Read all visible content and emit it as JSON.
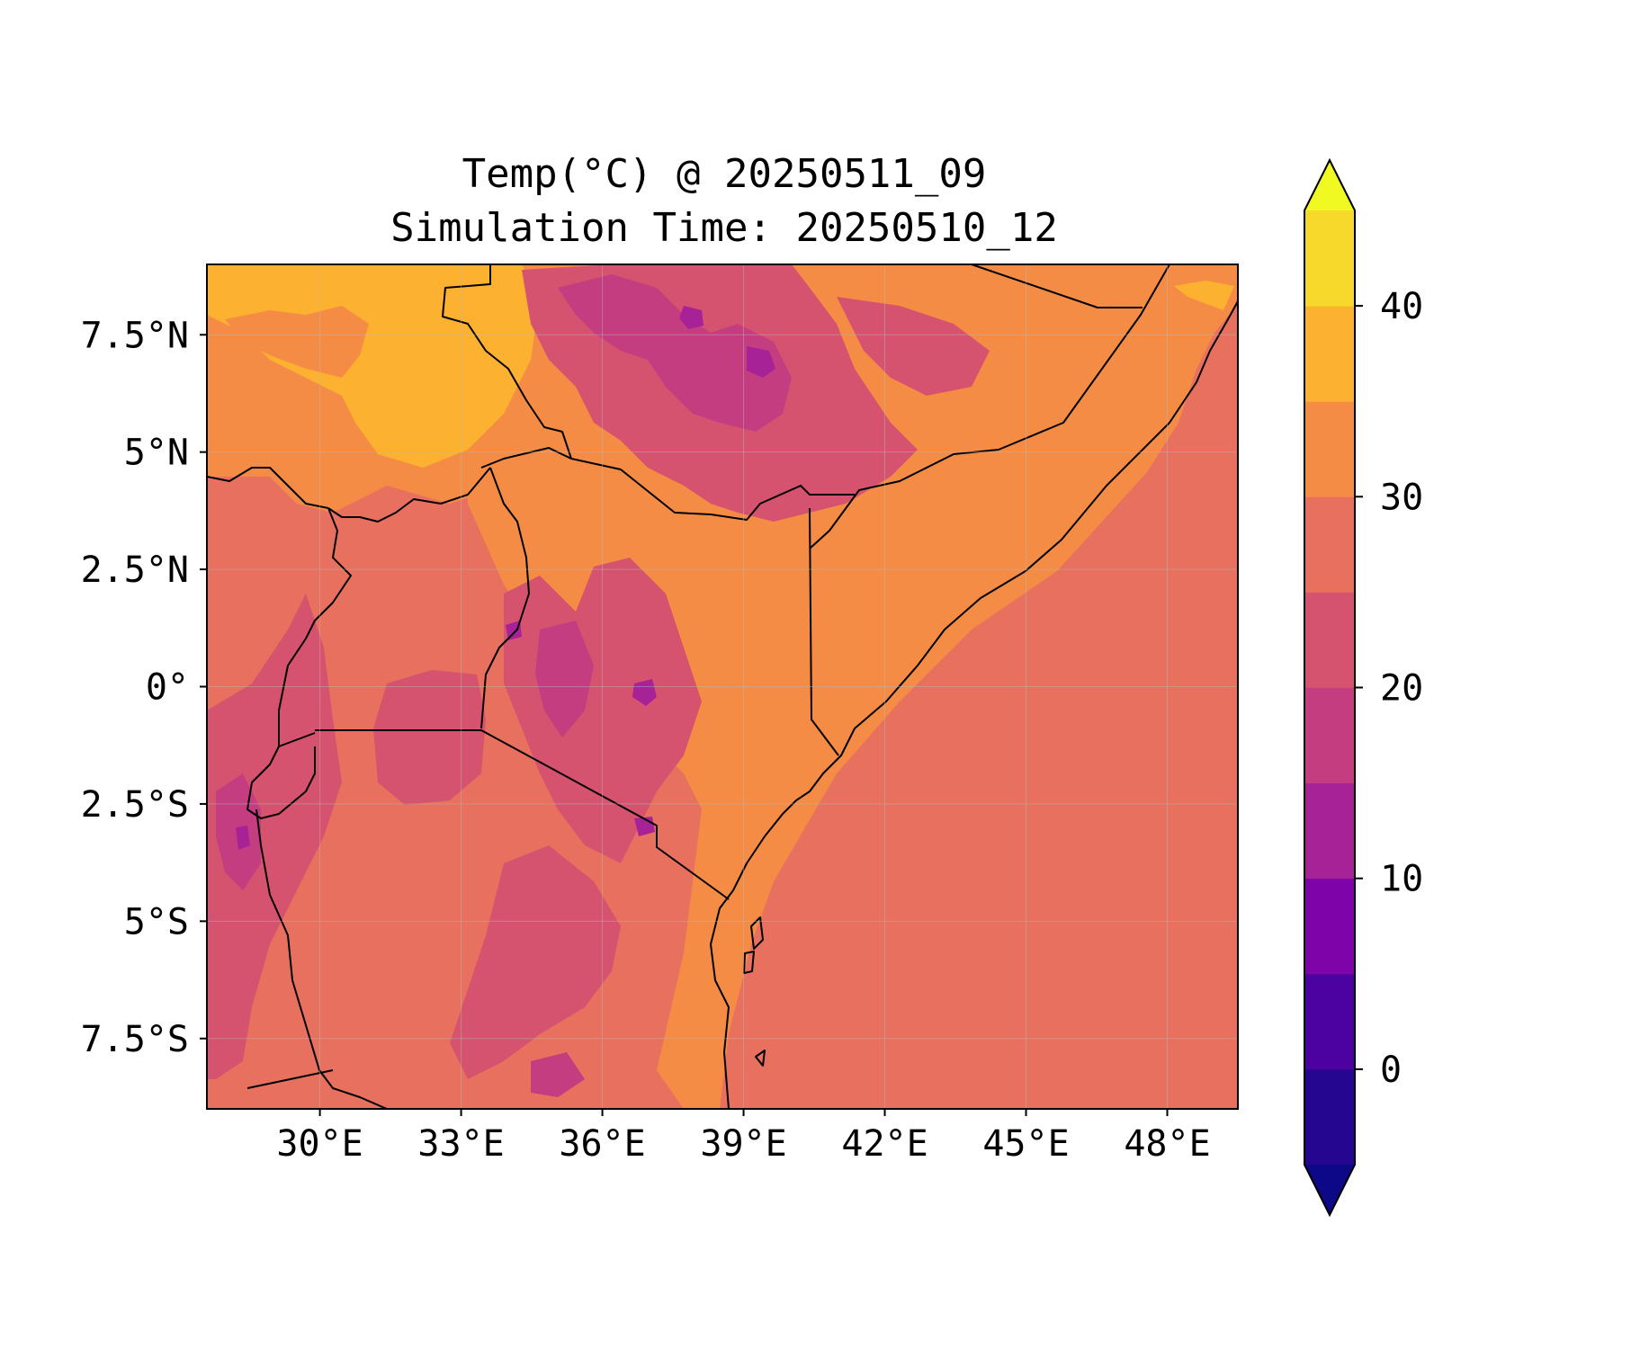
{
  "title": {
    "line1": "Temp(°C) @ 20250511_09",
    "line2": "Simulation Time: 20250510_12"
  },
  "map": {
    "lon_range": [
      27.6,
      49.5
    ],
    "lat_range": [
      -9.0,
      9.0
    ],
    "lon_ticks": [
      {
        "value": 30,
        "label": "30°E"
      },
      {
        "value": 33,
        "label": "33°E"
      },
      {
        "value": 36,
        "label": "36°E"
      },
      {
        "value": 39,
        "label": "39°E"
      },
      {
        "value": 42,
        "label": "42°E"
      },
      {
        "value": 45,
        "label": "45°E"
      },
      {
        "value": 48,
        "label": "48°E"
      }
    ],
    "lat_ticks": [
      {
        "value": 7.5,
        "label": "7.5°N"
      },
      {
        "value": 5,
        "label": "5°N"
      },
      {
        "value": 2.5,
        "label": "2.5°N"
      },
      {
        "value": 0,
        "label": "0°"
      },
      {
        "value": -2.5,
        "label": "2.5°S"
      },
      {
        "value": -5,
        "label": "5°S"
      },
      {
        "value": -7.5,
        "label": "7.5°S"
      }
    ],
    "gridlines": true,
    "features": [
      "coastline",
      "country-borders"
    ]
  },
  "colorbar": {
    "cmap": "plasma",
    "range": [
      -5,
      45
    ],
    "extend": "both",
    "levels": [
      -5,
      0,
      5,
      10,
      15,
      20,
      25,
      30,
      35,
      40,
      45
    ],
    "band_colors": [
      "#240691",
      "#4c02a1",
      "#7e03a8",
      "#a72197",
      "#c33d80",
      "#d5536f",
      "#e8705e",
      "#f58c46",
      "#fdb130",
      "#f6d92a"
    ],
    "under_color": "#0d0887",
    "over_color": "#f0f921",
    "ticks": [
      {
        "value": 0,
        "label": "0"
      },
      {
        "value": 10,
        "label": "10"
      },
      {
        "value": 20,
        "label": "20"
      },
      {
        "value": 30,
        "label": "30"
      },
      {
        "value": 40,
        "label": "40"
      }
    ]
  },
  "region_colors": {
    "ocean": "#e8705e",
    "lowland": "#f58c46",
    "hot_north": "#fdb130",
    "highland": "#d5536f",
    "high_peaks": "#c33d80",
    "summits": "#a72197",
    "borders": "#000000"
  }
}
